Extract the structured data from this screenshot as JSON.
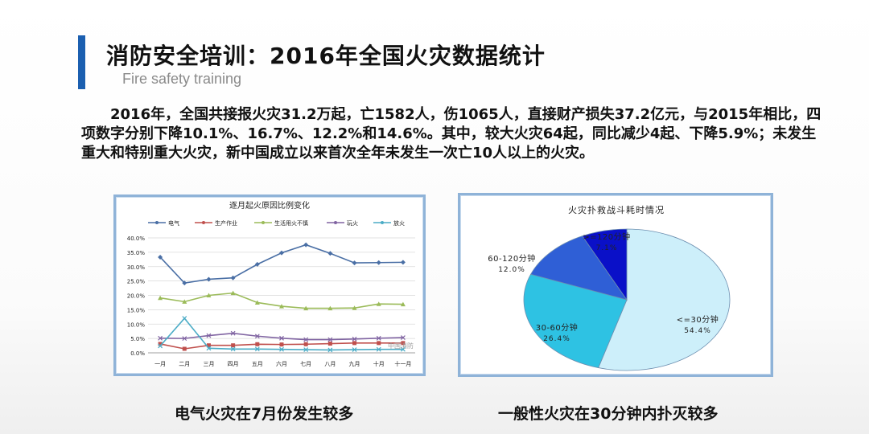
{
  "header": {
    "title": "消防安全培训：2016年全国火灾数据统计",
    "subtitle": "Fire safety training",
    "accent_color": "#1b5fb0"
  },
  "body": {
    "paragraph": "2016年，全国共接报火灾31.2万起，亡1582人，伤1065人，直接财产损失37.2亿元，与2015年相比，四项数字分别下降10.1%、16.7%、12.2%和14.6%。其中，较大火灾64起，同比减少4起、下降5.9%；未发生重大和特别重大火灾，新中国成立以来首次全年未发生一次亡10人以上的火灾。"
  },
  "captions": {
    "left": "电气火灾在7月份发生较多",
    "right": "一般性火灾在30分钟内扑灭较多"
  },
  "chart_data": [
    {
      "type": "line",
      "title": "逐月起火原因比例变化",
      "categories": [
        "一月",
        "二月",
        "三月",
        "四月",
        "五月",
        "六月",
        "七月",
        "八月",
        "九月",
        "十月",
        "十一月"
      ],
      "ylim": [
        0,
        40
      ],
      "yticks": [
        "0.0%",
        "5.0%",
        "10.0%",
        "15.0%",
        "20.0%",
        "25.0%",
        "30.0%",
        "35.0%",
        "40.0%"
      ],
      "grid": true,
      "legend_position": "top",
      "watermark": "中国消防",
      "series": [
        {
          "name": "电气",
          "color": "#4a6fa5",
          "marker": "diamond",
          "values": [
            33.3,
            24.3,
            25.6,
            26.1,
            30.8,
            34.8,
            37.6,
            34.6,
            31.3,
            31.4,
            31.5
          ]
        },
        {
          "name": "生产作业",
          "color": "#c0504d",
          "marker": "square",
          "values": [
            3.1,
            1.4,
            2.6,
            2.6,
            3.0,
            2.9,
            3.0,
            3.2,
            3.4,
            3.4,
            3.4
          ]
        },
        {
          "name": "生活用火不慎",
          "color": "#9bbb59",
          "marker": "triangle",
          "values": [
            19.1,
            17.8,
            20.0,
            20.8,
            17.5,
            16.2,
            15.5,
            15.5,
            15.6,
            17.0,
            16.9
          ]
        },
        {
          "name": "玩火",
          "color": "#8064a2",
          "marker": "x",
          "values": [
            5.1,
            5.0,
            6.0,
            6.8,
            5.8,
            5.1,
            4.6,
            4.6,
            4.8,
            5.1,
            5.3
          ]
        },
        {
          "name": "放火",
          "color": "#4bacc6",
          "marker": "x",
          "values": [
            2.4,
            12.0,
            1.6,
            1.3,
            1.3,
            1.2,
            1.1,
            1.0,
            1.1,
            1.2,
            1.2
          ]
        }
      ]
    },
    {
      "type": "pie",
      "title": "火灾扑救战斗耗时情况",
      "slices": [
        {
          "label": "<=30分钟",
          "value_label": "54.4%",
          "value": 54.4,
          "color": "#cdeffa"
        },
        {
          "label": "30-60分钟",
          "value_label": "26.4%",
          "value": 26.4,
          "color": "#2ec2e3"
        },
        {
          "label": "60-120分钟",
          "value_label": "12.0%",
          "value": 12.0,
          "color": "#2f5fd6"
        },
        {
          "label": ">=120分钟",
          "value_label": "7.1%",
          "value": 7.1,
          "color": "#0a10c8"
        }
      ]
    }
  ]
}
